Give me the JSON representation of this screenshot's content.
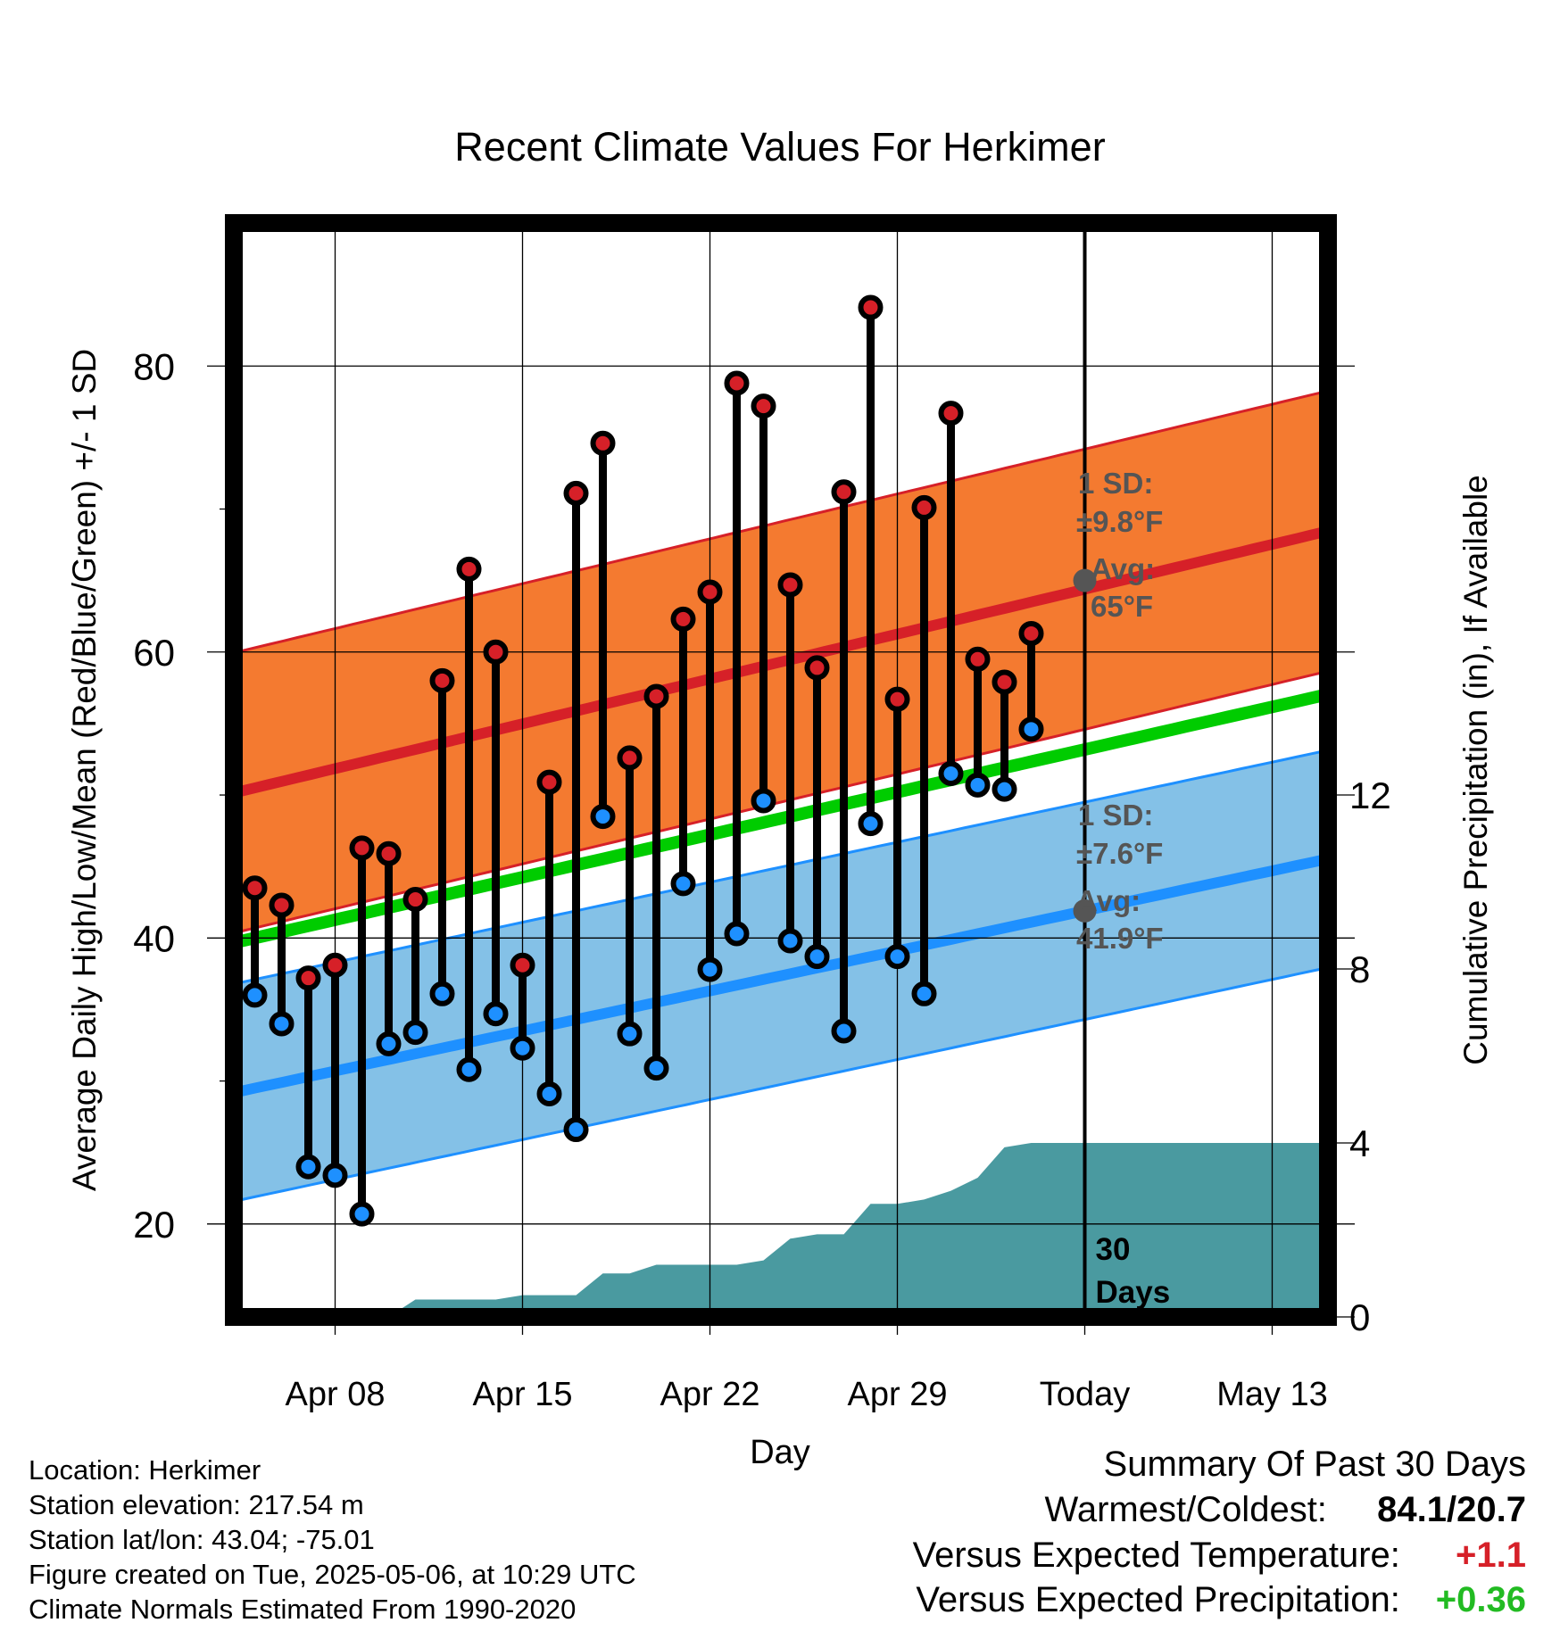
{
  "chart_data": {
    "type": "line",
    "title": "Recent Climate Values For Herkimer",
    "xlabel": "Day",
    "ylabel_left": "Average Daily High/Low/Mean (Red/Blue/Green) +/- 1 SD",
    "ylabel_right": "Cumulative Precipitation (in), If Available",
    "ylim": [
      13.5,
      90
    ],
    "ylim_right": [
      0,
      25
    ],
    "yticks_left": [
      "20",
      "40",
      "60",
      "80"
    ],
    "yticks_right": [
      "0",
      "4",
      "8",
      "12"
    ],
    "x_ticks": [
      {
        "day": 3,
        "label": "Apr 08"
      },
      {
        "day": 10,
        "label": "Apr 15"
      },
      {
        "day": 17,
        "label": "Apr 22"
      },
      {
        "day": 24,
        "label": "Apr 29"
      },
      {
        "day": 31,
        "label": "Today"
      },
      {
        "day": 38,
        "label": "May 13"
      }
    ],
    "days": [
      "Apr 06",
      "Apr 07",
      "Apr 08",
      "Apr 09",
      "Apr 10",
      "Apr 11",
      "Apr 12",
      "Apr 13",
      "Apr 14",
      "Apr 15",
      "Apr 16",
      "Apr 17",
      "Apr 18",
      "Apr 19",
      "Apr 20",
      "Apr 21",
      "Apr 22",
      "Apr 23",
      "Apr 24",
      "Apr 25",
      "Apr 26",
      "Apr 27",
      "Apr 28",
      "Apr 29",
      "Apr 30",
      "May 01",
      "May 02",
      "May 03",
      "May 04",
      "May 05"
    ],
    "highs": [
      43.5,
      42.3,
      37.2,
      38.1,
      46.3,
      45.9,
      42.7,
      58.0,
      65.8,
      60.0,
      38.1,
      50.9,
      71.1,
      74.6,
      52.6,
      56.9,
      62.3,
      64.2,
      78.8,
      77.2,
      64.7,
      58.9,
      71.2,
      84.1,
      56.7,
      70.1,
      76.7,
      59.5,
      57.9,
      61.3
    ],
    "lows": [
      36.0,
      34.0,
      24.0,
      23.4,
      20.7,
      32.6,
      33.4,
      36.1,
      30.8,
      34.7,
      32.3,
      29.1,
      26.6,
      48.5,
      33.3,
      30.9,
      43.8,
      37.8,
      40.3,
      49.6,
      39.8,
      38.7,
      33.5,
      48.0,
      38.7,
      36.1,
      51.5,
      50.7,
      50.4,
      54.6
    ],
    "normal_high": {
      "start": 50.5,
      "end": 68.2,
      "sd": 9.8
    },
    "normal_low": {
      "start": 29.5,
      "end": 45.3,
      "sd": 7.6
    },
    "normal_mean": {
      "start": 40.0,
      "end": 56.8
    },
    "precip_cumulative": [
      0,
      0,
      0,
      0,
      0,
      0,
      0.4,
      0.4,
      0.4,
      0.4,
      0.5,
      0.5,
      0.5,
      1.0,
      1.0,
      1.2,
      1.2,
      1.2,
      1.2,
      1.3,
      1.8,
      1.9,
      1.9,
      2.6,
      2.6,
      2.7,
      2.9,
      3.2,
      3.9,
      4.0,
      4.0
    ],
    "annotations": {
      "high_sd_label": "1 SD:",
      "high_sd_value": "±9.8°F",
      "high_avg_label": "Avg:",
      "high_avg_value": "65°F",
      "high_avg": 65,
      "low_sd_label": "1 SD:",
      "low_sd_value": "±7.6°F",
      "low_avg_label": "Avg:",
      "low_avg_value": "41.9°F",
      "low_avg": 41.9,
      "period_label_1": "30",
      "period_label_2": "Days"
    },
    "colors": {
      "high_band": "#f47a30",
      "high_line": "#d62028",
      "low_band": "#84c1e7",
      "low_line": "#1e90ff",
      "mean_line": "#00cc00",
      "precip": "#4a9aa0",
      "high_dot": "#d62028",
      "low_dot": "#1e90ff",
      "annotation": "#555555"
    }
  },
  "info": {
    "location": "Location: Herkimer",
    "elevation": "Station elevation: 217.54 m",
    "latlon": "Station lat/lon: 43.04; -75.01",
    "created": "Figure created on Tue, 2025-05-06, at 10:29 UTC",
    "normals": "Climate Normals Estimated From 1990-2020"
  },
  "summary": {
    "title": "Summary Of Past 30 Days",
    "warm_cold_label": "Warmest/Coldest:",
    "warm_cold_value": "84.1/20.7",
    "temp_label": "Versus Expected Temperature:",
    "temp_value": "+1.1",
    "temp_color": "#d62028",
    "precip_label": "Versus Expected Precipitation:",
    "precip_value": "+0.36",
    "precip_color": "#22bb22"
  }
}
